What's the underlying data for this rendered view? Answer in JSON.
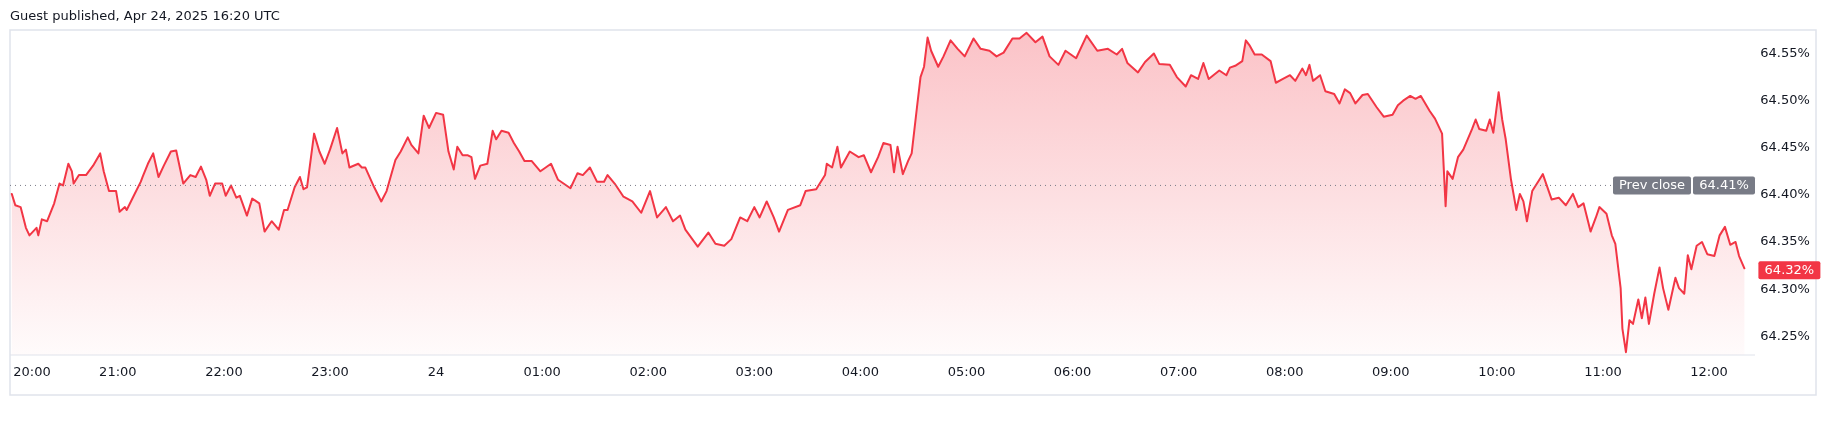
{
  "chart_data": {
    "type": "area",
    "title": "Guest published, Apr 24, 2025 16:20 UTC",
    "x": [
      "2025-04-23T20:00",
      "2025-04-23T20:02",
      "2025-04-23T20:05",
      "2025-04-23T20:08",
      "2025-04-23T20:10",
      "2025-04-23T20:14",
      "2025-04-23T20:15",
      "2025-04-23T20:17",
      "2025-04-23T20:20",
      "2025-04-23T20:24",
      "2025-04-23T20:27",
      "2025-04-23T20:29",
      "2025-04-23T20:32",
      "2025-04-23T20:34",
      "2025-04-23T20:35",
      "2025-04-23T20:38",
      "2025-04-23T20:42",
      "2025-04-23T20:46",
      "2025-04-23T20:50",
      "2025-04-23T20:52",
      "2025-04-23T20:55",
      "2025-04-23T20:59",
      "2025-04-23T21:01",
      "2025-04-23T21:04",
      "2025-04-23T21:05",
      "2025-04-23T21:09",
      "2025-04-23T21:13",
      "2025-04-23T21:14",
      "2025-04-23T21:17",
      "2025-04-23T21:20",
      "2025-04-23T21:23",
      "2025-04-23T21:26",
      "2025-04-23T21:30",
      "2025-04-23T21:33",
      "2025-04-23T21:37",
      "2025-04-23T21:41",
      "2025-04-23T21:44",
      "2025-04-23T21:47",
      "2025-04-23T21:50",
      "2025-04-23T21:52",
      "2025-04-23T21:55",
      "2025-04-23T21:59",
      "2025-04-23T22:01",
      "2025-04-23T22:04",
      "2025-04-23T22:07",
      "2025-04-23T22:09",
      "2025-04-23T22:13",
      "2025-04-23T22:16",
      "2025-04-23T22:20",
      "2025-04-23T22:23",
      "2025-04-23T22:27",
      "2025-04-23T22:31",
      "2025-04-23T22:34",
      "2025-04-23T22:36",
      "2025-04-23T22:40",
      "2025-04-23T22:43",
      "2025-04-23T22:45",
      "2025-04-23T22:47",
      "2025-04-23T22:51",
      "2025-04-23T22:54",
      "2025-04-23T22:57",
      "2025-04-23T23:00",
      "2025-04-23T23:04",
      "2025-04-23T23:07",
      "2025-04-23T23:09",
      "2025-04-23T23:11",
      "2025-04-23T23:16",
      "2025-04-23T23:18",
      "2025-04-23T23:20",
      "2025-04-23T23:25",
      "2025-04-23T23:29",
      "2025-04-23T23:32",
      "2025-04-23T23:37",
      "2025-04-23T23:40",
      "2025-04-23T23:44",
      "2025-04-23T23:46",
      "2025-04-23T23:50",
      "2025-04-23T23:53",
      "2025-04-23T23:56",
      "2025-04-24T00:00",
      "2025-04-24T00:04",
      "2025-04-24T00:07",
      "2025-04-24T00:10",
      "2025-04-24T00:12",
      "2025-04-24T00:15",
      "2025-04-24T00:18",
      "2025-04-24T00:20",
      "2025-04-24T00:22",
      "2025-04-24T00:25",
      "2025-04-24T00:29",
      "2025-04-24T00:32",
      "2025-04-24T00:34",
      "2025-04-24T00:37",
      "2025-04-24T00:41",
      "2025-04-24T00:44",
      "2025-04-24T00:47",
      "2025-04-24T00:50",
      "2025-04-24T00:54",
      "2025-04-24T00:59",
      "2025-04-24T01:05",
      "2025-04-24T01:09",
      "2025-04-24T01:16",
      "2025-04-24T01:20",
      "2025-04-24T01:23",
      "2025-04-24T01:27",
      "2025-04-24T01:31",
      "2025-04-24T01:35",
      "2025-04-24T01:37",
      "2025-04-24T01:41",
      "2025-04-24T01:46",
      "2025-04-24T01:51",
      "2025-04-24T01:56",
      "2025-04-24T02:01",
      "2025-04-24T02:05",
      "2025-04-24T02:10",
      "2025-04-24T02:14",
      "2025-04-24T02:18",
      "2025-04-24T02:21",
      "2025-04-24T02:28",
      "2025-04-24T02:34",
      "2025-04-24T02:38",
      "2025-04-24T02:43",
      "2025-04-24T02:47",
      "2025-04-24T02:52",
      "2025-04-24T02:56",
      "2025-04-24T03:00",
      "2025-04-24T03:03",
      "2025-04-24T03:07",
      "2025-04-24T03:11",
      "2025-04-24T03:14",
      "2025-04-24T03:19",
      "2025-04-24T03:26",
      "2025-04-24T03:29",
      "2025-04-24T03:35",
      "2025-04-24T03:40",
      "2025-04-24T03:41",
      "2025-04-24T03:44",
      "2025-04-24T03:47",
      "2025-04-24T03:49",
      "2025-04-24T03:54",
      "2025-04-24T03:59",
      "2025-04-24T04:02",
      "2025-04-24T04:06",
      "2025-04-24T04:10",
      "2025-04-24T04:13",
      "2025-04-24T04:17",
      "2025-04-24T04:19",
      "2025-04-24T04:21",
      "2025-04-24T04:24",
      "2025-04-24T04:27",
      "2025-04-24T04:29",
      "2025-04-24T04:32",
      "2025-04-24T04:34",
      "2025-04-24T04:36",
      "2025-04-24T04:38",
      "2025-04-24T04:40",
      "2025-04-24T04:44",
      "2025-04-24T04:47",
      "2025-04-24T04:51",
      "2025-04-24T04:55",
      "2025-04-24T04:59",
      "2025-04-24T05:04",
      "2025-04-24T05:08",
      "2025-04-24T05:13",
      "2025-04-24T05:17",
      "2025-04-24T05:21",
      "2025-04-24T05:26",
      "2025-04-24T05:30",
      "2025-04-24T05:34",
      "2025-04-24T05:39",
      "2025-04-24T05:43",
      "2025-04-24T05:47",
      "2025-04-24T05:52",
      "2025-04-24T05:56",
      "2025-04-24T06:02",
      "2025-04-24T06:08",
      "2025-04-24T06:14",
      "2025-04-24T06:20",
      "2025-04-24T06:25",
      "2025-04-24T06:28",
      "2025-04-24T06:31",
      "2025-04-24T06:37",
      "2025-04-24T06:41",
      "2025-04-24T06:46",
      "2025-04-24T06:49",
      "2025-04-24T06:55",
      "2025-04-24T06:59",
      "2025-04-24T07:04",
      "2025-04-24T07:07",
      "2025-04-24T07:11",
      "2025-04-24T07:14",
      "2025-04-24T07:17",
      "2025-04-24T07:23",
      "2025-04-24T07:27",
      "2025-04-24T07:29",
      "2025-04-24T07:32",
      "2025-04-24T07:36",
      "2025-04-24T07:38",
      "2025-04-24T07:40",
      "2025-04-24T07:43",
      "2025-04-24T07:47",
      "2025-04-24T07:52",
      "2025-04-24T07:55",
      "2025-04-24T07:59",
      "2025-04-24T08:03",
      "2025-04-24T08:06",
      "2025-04-24T08:10",
      "2025-04-24T08:12",
      "2025-04-24T08:14",
      "2025-04-24T08:16",
      "2025-04-24T08:20",
      "2025-04-24T08:23",
      "2025-04-24T08:28",
      "2025-04-24T08:31",
      "2025-04-24T08:34",
      "2025-04-24T08:37",
      "2025-04-24T08:40",
      "2025-04-24T08:44",
      "2025-04-24T08:47",
      "2025-04-24T08:52",
      "2025-04-24T08:56",
      "2025-04-24T09:01",
      "2025-04-24T09:04",
      "2025-04-24T09:07",
      "2025-04-24T09:11",
      "2025-04-24T09:14",
      "2025-04-24T09:17",
      "2025-04-24T09:22",
      "2025-04-24T09:25",
      "2025-04-24T09:29",
      "2025-04-24T09:31",
      "2025-04-24T09:32",
      "2025-04-24T09:35",
      "2025-04-24T09:38",
      "2025-04-24T09:41",
      "2025-04-24T09:46",
      "2025-04-24T09:48",
      "2025-04-24T09:50",
      "2025-04-24T09:54",
      "2025-04-24T09:56",
      "2025-04-24T09:58",
      "2025-04-24T10:01",
      "2025-04-24T10:03",
      "2025-04-24T10:05",
      "2025-04-24T10:08",
      "2025-04-24T10:11",
      "2025-04-24T10:13",
      "2025-04-24T10:15",
      "2025-04-24T10:17",
      "2025-04-24T10:20",
      "2025-04-24T10:25",
      "2025-04-24T10:26",
      "2025-04-24T10:31",
      "2025-04-24T10:35",
      "2025-04-24T10:39",
      "2025-04-24T10:43",
      "2025-04-24T10:46",
      "2025-04-24T10:49",
      "2025-04-24T10:53",
      "2025-04-24T10:56",
      "2025-04-24T10:58",
      "2025-04-24T11:02",
      "2025-04-24T11:05",
      "2025-04-24T11:07",
      "2025-04-24T11:10",
      "2025-04-24T11:11",
      "2025-04-24T11:13",
      "2025-04-24T11:15",
      "2025-04-24T11:17",
      "2025-04-24T11:20",
      "2025-04-24T11:22",
      "2025-04-24T11:24",
      "2025-04-24T11:26",
      "2025-04-24T11:29",
      "2025-04-24T11:32",
      "2025-04-24T11:34",
      "2025-04-24T11:37",
      "2025-04-24T11:41",
      "2025-04-24T11:43",
      "2025-04-24T11:46",
      "2025-04-24T11:48",
      "2025-04-24T11:50",
      "2025-04-24T11:53",
      "2025-04-24T11:56",
      "2025-04-24T11:59",
      "2025-04-24T12:03",
      "2025-04-24T12:06",
      "2025-04-24T12:09",
      "2025-04-24T12:12",
      "2025-04-24T12:15",
      "2025-04-24T12:17",
      "2025-04-24T12:20"
    ],
    "series": [
      {
        "color": "#f23645",
        "values": [
          64.401,
          64.389,
          64.387,
          64.365,
          64.357,
          64.365,
          64.357,
          64.374,
          64.372,
          64.391,
          64.412,
          64.41,
          64.433,
          64.425,
          64.412,
          64.421,
          64.421,
          64.431,
          64.444,
          64.425,
          64.404,
          64.404,
          64.382,
          64.387,
          64.384,
          64.399,
          64.414,
          64.419,
          64.433,
          64.444,
          64.419,
          64.431,
          64.446,
          64.447,
          64.412,
          64.421,
          64.419,
          64.43,
          64.416,
          64.399,
          64.412,
          64.412,
          64.399,
          64.41,
          64.397,
          64.399,
          64.378,
          64.396,
          64.391,
          64.361,
          64.372,
          64.363,
          64.384,
          64.384,
          64.408,
          64.419,
          64.406,
          64.408,
          64.465,
          64.446,
          64.433,
          64.448,
          64.471,
          64.444,
          64.448,
          64.429,
          64.433,
          64.429,
          64.429,
          64.408,
          64.393,
          64.404,
          64.437,
          64.446,
          64.461,
          64.453,
          64.444,
          64.484,
          64.471,
          64.487,
          64.485,
          64.446,
          64.427,
          64.451,
          64.442,
          64.442,
          64.44,
          64.417,
          64.431,
          64.433,
          64.468,
          64.459,
          64.468,
          64.466,
          64.455,
          64.446,
          64.436,
          64.436,
          64.425,
          64.433,
          64.416,
          64.407,
          64.423,
          64.421,
          64.429,
          64.414,
          64.414,
          64.421,
          64.412,
          64.398,
          64.393,
          64.381,
          64.404,
          64.376,
          64.387,
          64.372,
          64.378,
          64.363,
          64.345,
          64.36,
          64.348,
          64.346,
          64.353,
          64.376,
          64.372,
          64.387,
          64.376,
          64.393,
          64.376,
          64.361,
          64.384,
          64.389,
          64.404,
          64.406,
          64.421,
          64.433,
          64.429,
          64.451,
          64.429,
          64.446,
          64.44,
          64.442,
          64.424,
          64.44,
          64.455,
          64.453,
          64.424,
          64.451,
          64.422,
          64.436,
          64.444,
          64.493,
          64.525,
          64.536,
          64.567,
          64.553,
          64.536,
          64.547,
          64.564,
          64.555,
          64.547,
          64.566,
          64.555,
          64.553,
          64.547,
          64.551,
          64.566,
          64.566,
          64.572,
          64.562,
          64.568,
          64.547,
          64.538,
          64.553,
          64.545,
          64.569,
          64.553,
          64.555,
          64.549,
          64.555,
          64.54,
          64.53,
          64.541,
          64.55,
          64.539,
          64.538,
          64.525,
          64.515,
          64.527,
          64.523,
          64.54,
          64.523,
          64.532,
          64.527,
          64.535,
          64.537,
          64.542,
          64.564,
          64.559,
          64.549,
          64.549,
          64.542,
          64.519,
          64.523,
          64.527,
          64.521,
          64.534,
          64.527,
          64.538,
          64.521,
          64.527,
          64.51,
          64.507,
          64.497,
          64.512,
          64.508,
          64.497,
          64.506,
          64.507,
          64.493,
          64.483,
          64.485,
          64.495,
          64.5,
          64.505,
          64.502,
          64.505,
          64.489,
          64.481,
          64.465,
          64.388,
          64.425,
          64.417,
          64.44,
          64.448,
          64.47,
          64.48,
          64.47,
          64.468,
          64.48,
          64.466,
          64.509,
          64.48,
          64.459,
          64.416,
          64.384,
          64.401,
          64.393,
          64.372,
          64.404,
          64.419,
          64.422,
          64.395,
          64.397,
          64.389,
          64.401,
          64.387,
          64.391,
          64.361,
          64.376,
          64.387,
          64.38,
          64.357,
          64.348,
          64.301,
          64.258,
          64.233,
          64.267,
          64.263,
          64.289,
          64.269,
          64.291,
          64.263,
          64.295,
          64.323,
          64.301,
          64.278,
          64.312,
          64.301,
          64.295,
          64.336,
          64.321,
          64.346,
          64.35,
          64.337,
          64.335,
          64.357,
          64.366,
          64.347,
          64.35,
          64.335,
          64.322
        ]
      }
    ],
    "xlim": [
      "2025-04-23T19:59",
      "2025-04-24T12:26"
    ],
    "xticks": [
      {
        "value": "2025-04-23T20:00",
        "label": "20:00"
      },
      {
        "value": "2025-04-23T21:00",
        "label": "21:00"
      },
      {
        "value": "2025-04-23T22:00",
        "label": "22:00"
      },
      {
        "value": "2025-04-23T23:00",
        "label": "23:00"
      },
      {
        "value": "2025-04-24T00:00",
        "label": "24"
      },
      {
        "value": "2025-04-24T01:00",
        "label": "01:00"
      },
      {
        "value": "2025-04-24T02:00",
        "label": "02:00"
      },
      {
        "value": "2025-04-24T03:00",
        "label": "03:00"
      },
      {
        "value": "2025-04-24T04:00",
        "label": "04:00"
      },
      {
        "value": "2025-04-24T05:00",
        "label": "05:00"
      },
      {
        "value": "2025-04-24T06:00",
        "label": "06:00"
      },
      {
        "value": "2025-04-24T07:00",
        "label": "07:00"
      },
      {
        "value": "2025-04-24T08:00",
        "label": "08:00"
      },
      {
        "value": "2025-04-24T09:00",
        "label": "09:00"
      },
      {
        "value": "2025-04-24T10:00",
        "label": "10:00"
      },
      {
        "value": "2025-04-24T11:00",
        "label": "11:00"
      },
      {
        "value": "2025-04-24T12:00",
        "label": "12:00"
      }
    ],
    "ylim": [
      64.23,
      64.575
    ],
    "yticks": [
      {
        "value": 64.25,
        "label": "64.25%"
      },
      {
        "value": 64.3,
        "label": "64.30%"
      },
      {
        "value": 64.35,
        "label": "64.35%"
      },
      {
        "value": 64.4,
        "label": "64.40%"
      },
      {
        "value": 64.45,
        "label": "64.45%"
      },
      {
        "value": 64.5,
        "label": "64.50%"
      },
      {
        "value": 64.55,
        "label": "64.55%"
      }
    ],
    "ref_lines": [
      {
        "axis": "y",
        "value": 64.41,
        "label": "Prev close",
        "color": "#787b86",
        "line_style": "dotted"
      }
    ],
    "annotations": [
      {
        "text": "64.41%",
        "y": 64.41
      },
      {
        "text": "64.32%",
        "x": "2025-04-24T12:20",
        "y": 64.32
      }
    ]
  }
}
